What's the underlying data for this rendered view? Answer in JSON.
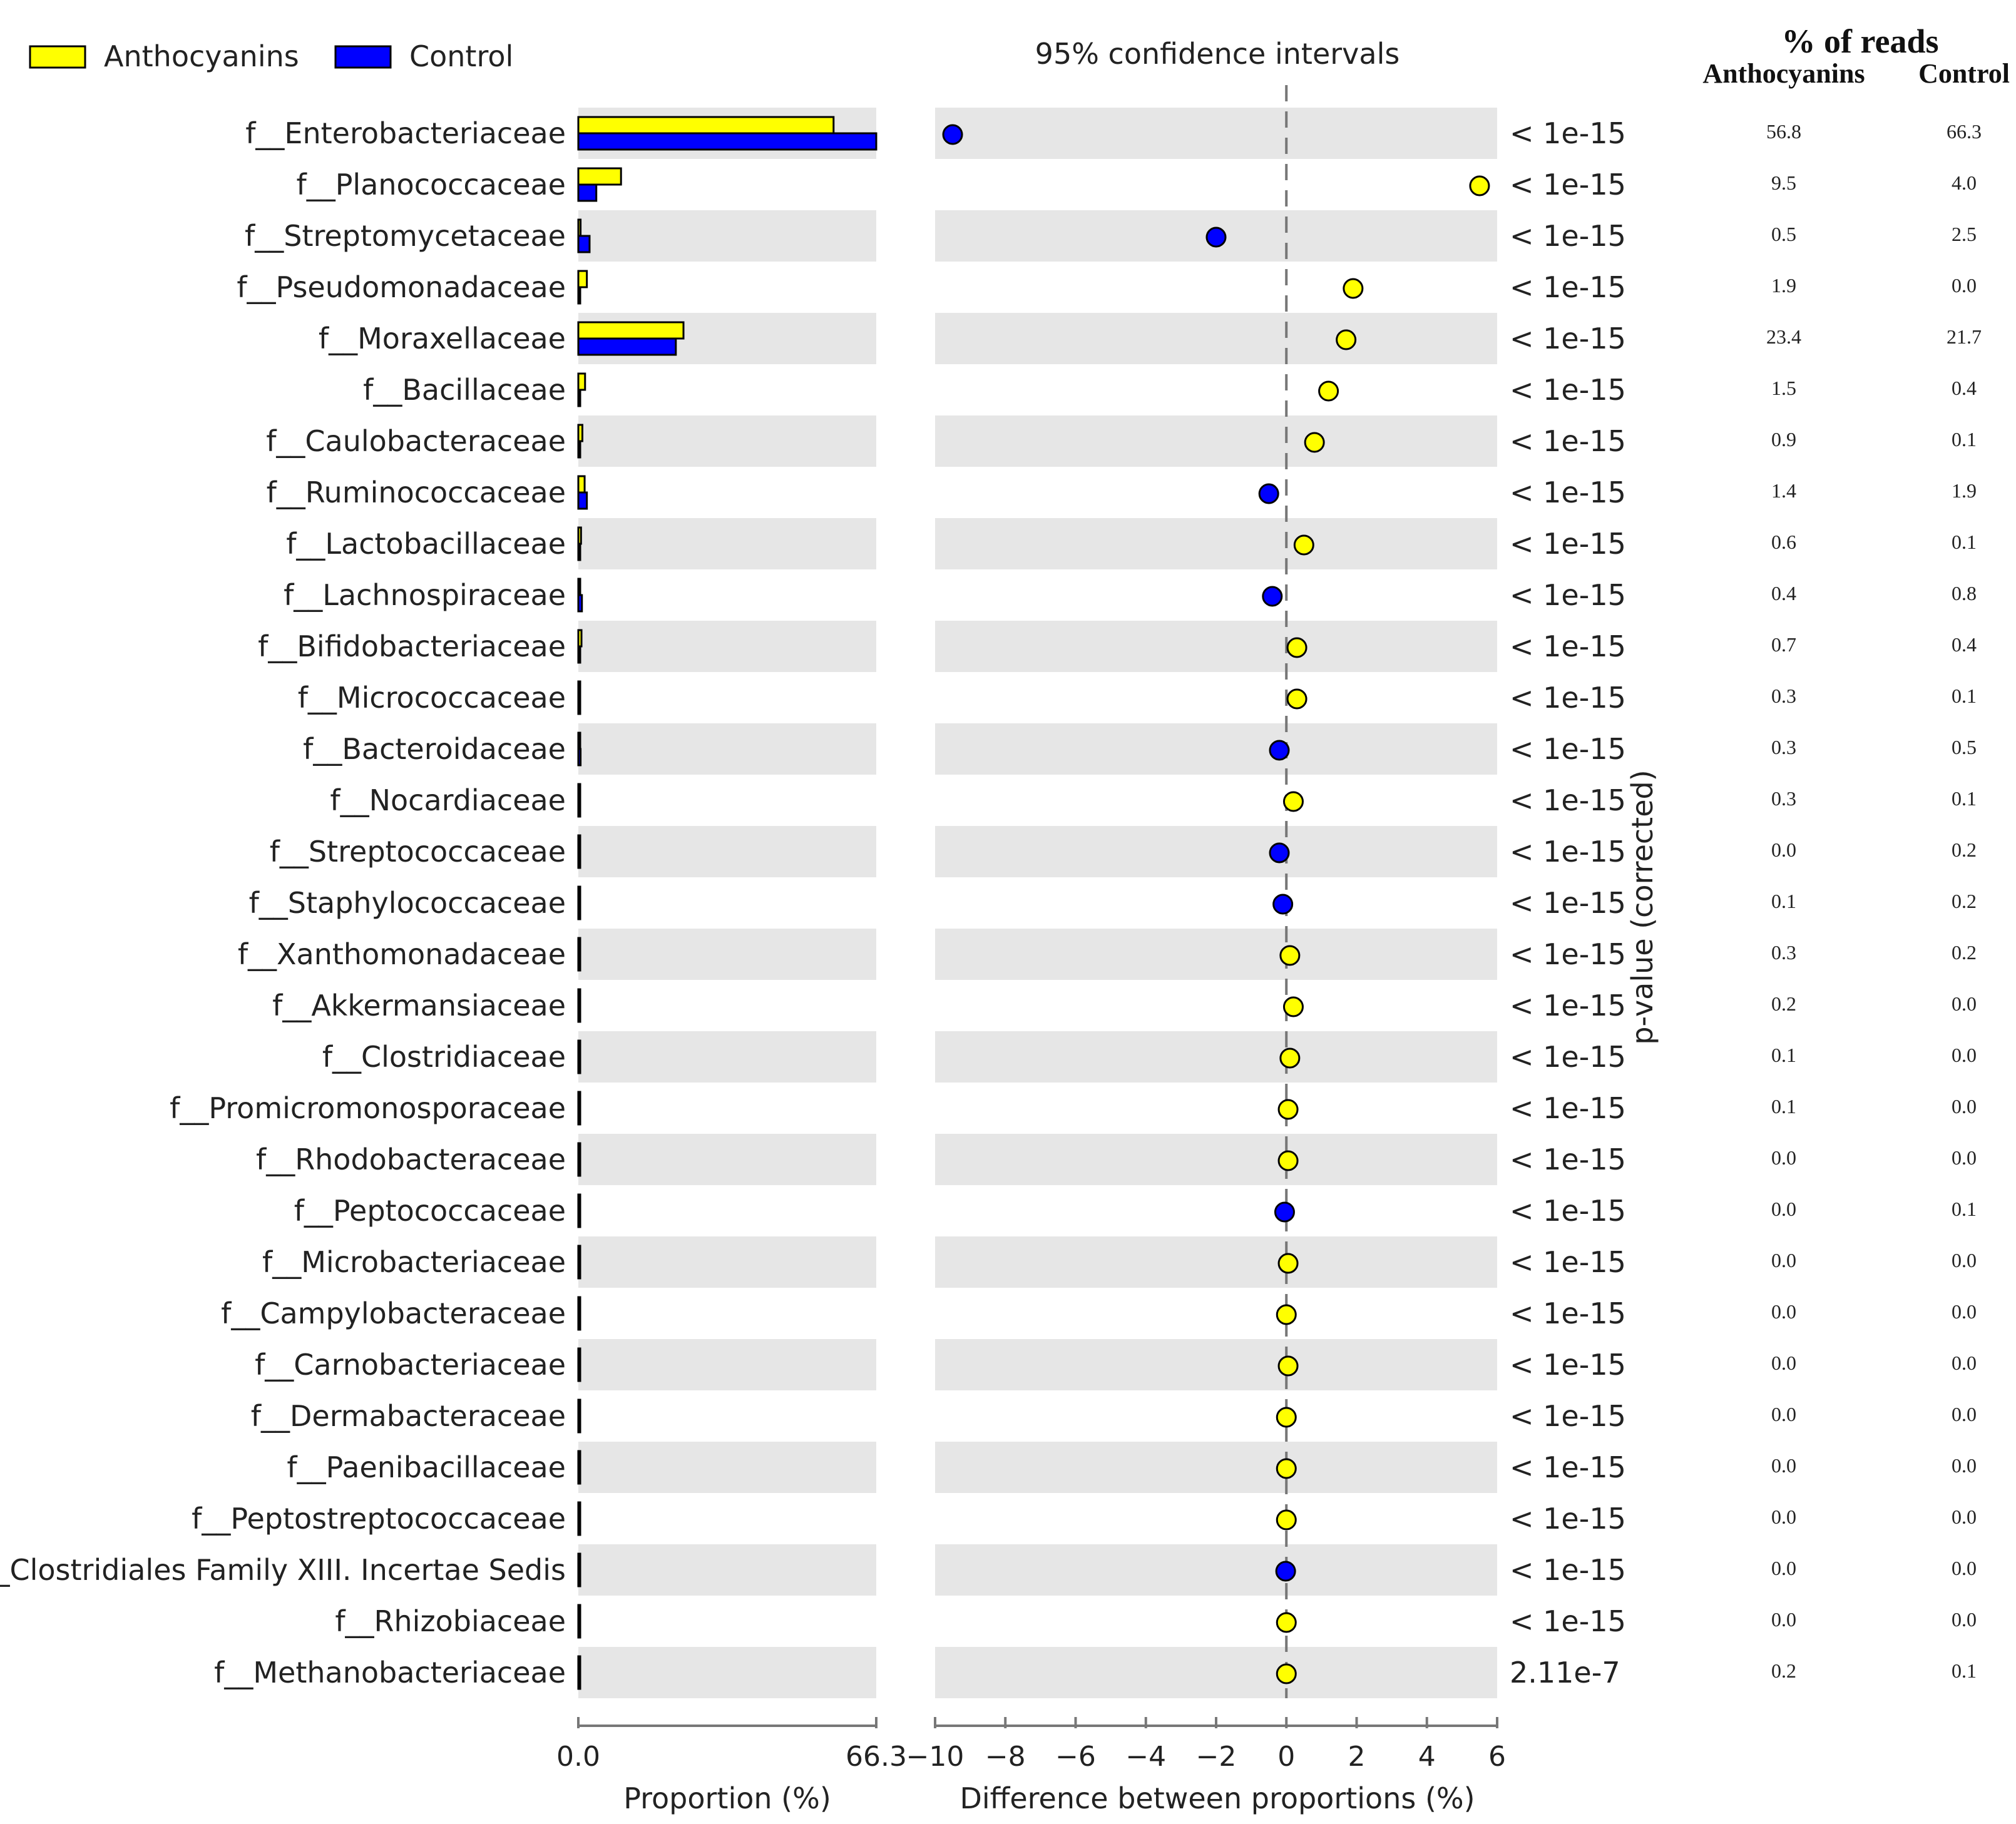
{
  "chart_data": {
    "type": "bar+scatter",
    "legend": [
      {
        "name": "Anthocyanins",
        "color": "#FFFF00"
      },
      {
        "name": "Control",
        "color": "#0000FF"
      }
    ],
    "ci_title": "95% confidence intervals",
    "reads_title": "% of reads",
    "reads_col1": "Anthocyanins",
    "reads_col2": "Control",
    "pvalue_label": "p-value (corrected)",
    "proportion": {
      "xlabel": "Proportion (%)",
      "xlim": [
        0,
        66.3
      ],
      "tick_labels": [
        "0.0",
        "66.3"
      ]
    },
    "difference": {
      "xlabel": "Difference between proportions (%)",
      "xlim": [
        -10,
        6
      ],
      "ticks": [
        -10,
        -8,
        -6,
        -4,
        -2,
        0,
        2,
        4,
        6
      ],
      "tick_labels": [
        "−10",
        "−8",
        "−6",
        "−4",
        "−2",
        "0",
        "2",
        "4",
        "6"
      ]
    },
    "categories": [
      "f__Enterobacteriaceae",
      "f__Planococcaceae",
      "f__Streptomycetaceae",
      "f__Pseudomonadaceae",
      "f__Moraxellaceae",
      "f__Bacillaceae",
      "f__Caulobacteraceae",
      "f__Ruminococcaceae",
      "f__Lactobacillaceae",
      "f__Lachnospiraceae",
      "f__Bifidobacteriaceae",
      "f__Micrococcaceae",
      "f__Bacteroidaceae",
      "f__Nocardiaceae",
      "f__Streptococcaceae",
      "f__Staphylococcaceae",
      "f__Xanthomonadaceae",
      "f__Akkermansiaceae",
      "f__Clostridiaceae",
      "f__Promicromonosporaceae",
      "f__Rhodobacteraceae",
      "f__Peptococcaceae",
      "f__Microbacteriaceae",
      "f__Campylobacteraceae",
      "f__Carnobacteriaceae",
      "f__Dermabacteraceae",
      "f__Paenibacillaceae",
      "f__Peptostreptococcaceae",
      "f__Clostridiales Family XIII. Incertae Sedis",
      "f__Rhizobiaceae",
      "f__Methanobacteriaceae"
    ],
    "series": [
      {
        "name": "Anthocyanins",
        "values": [
          56.8,
          9.5,
          0.5,
          1.9,
          23.4,
          1.5,
          0.9,
          1.4,
          0.6,
          0.4,
          0.7,
          0.3,
          0.3,
          0.3,
          0.0,
          0.1,
          0.3,
          0.2,
          0.1,
          0.1,
          0.0,
          0.0,
          0.0,
          0.0,
          0.0,
          0.0,
          0.0,
          0.0,
          0.0,
          0.0,
          0.2
        ]
      },
      {
        "name": "Control",
        "values": [
          66.3,
          4.0,
          2.5,
          0.0,
          21.7,
          0.4,
          0.1,
          1.9,
          0.1,
          0.8,
          0.4,
          0.1,
          0.5,
          0.1,
          0.2,
          0.2,
          0.2,
          0.0,
          0.0,
          0.0,
          0.0,
          0.1,
          0.0,
          0.0,
          0.0,
          0.0,
          0.0,
          0.0,
          0.0,
          0.0,
          0.1
        ]
      }
    ],
    "difference_values": [
      -9.5,
      5.5,
      -2.0,
      1.9,
      1.7,
      1.2,
      0.8,
      -0.5,
      0.5,
      -0.4,
      0.3,
      0.3,
      -0.2,
      0.2,
      -0.2,
      -0.1,
      0.1,
      0.2,
      0.1,
      0.05,
      0.05,
      -0.05,
      0.05,
      0.0,
      0.05,
      0.0,
      0.0,
      0.0,
      -0.02,
      0.0,
      0.0
    ],
    "difference_favors": [
      "Control",
      "Anthocyanins",
      "Control",
      "Anthocyanins",
      "Anthocyanins",
      "Anthocyanins",
      "Anthocyanins",
      "Control",
      "Anthocyanins",
      "Control",
      "Anthocyanins",
      "Anthocyanins",
      "Control",
      "Anthocyanins",
      "Control",
      "Control",
      "Anthocyanins",
      "Anthocyanins",
      "Anthocyanins",
      "Anthocyanins",
      "Anthocyanins",
      "Control",
      "Anthocyanins",
      "Anthocyanins",
      "Anthocyanins",
      "Anthocyanins",
      "Anthocyanins",
      "Anthocyanins",
      "Control",
      "Anthocyanins",
      "Anthocyanins"
    ],
    "pvalues": [
      "< 1e-15",
      "< 1e-15",
      "< 1e-15",
      "< 1e-15",
      "< 1e-15",
      "< 1e-15",
      "< 1e-15",
      "< 1e-15",
      "< 1e-15",
      "< 1e-15",
      "< 1e-15",
      "< 1e-15",
      "< 1e-15",
      "< 1e-15",
      "< 1e-15",
      "< 1e-15",
      "< 1e-15",
      "< 1e-15",
      "< 1e-15",
      "< 1e-15",
      "< 1e-15",
      "< 1e-15",
      "< 1e-15",
      "< 1e-15",
      "< 1e-15",
      "< 1e-15",
      "< 1e-15",
      "< 1e-15",
      "< 1e-15",
      "< 1e-15",
      "2.11e-7"
    ],
    "reads_anthocyanins": [
      "56.8",
      "9.5",
      "0.5",
      "1.9",
      "23.4",
      "1.5",
      "0.9",
      "1.4",
      "0.6",
      "0.4",
      "0.7",
      "0.3",
      "0.3",
      "0.3",
      "0.0",
      "0.1",
      "0.3",
      "0.2",
      "0.1",
      "0.1",
      "0.0",
      "0.0",
      "0.0",
      "0.0",
      "0.0",
      "0.0",
      "0.0",
      "0.0",
      "0.0",
      "0.0",
      "0.2"
    ],
    "reads_control": [
      "66.3",
      "4.0",
      "2.5",
      "0.0",
      "21.7",
      "0.4",
      "0.1",
      "1.9",
      "0.1",
      "0.8",
      "0.4",
      "0.1",
      "0.5",
      "0.1",
      "0.2",
      "0.2",
      "0.2",
      "0.0",
      "0.0",
      "0.0",
      "0.0",
      "0.1",
      "0.0",
      "0.0",
      "0.0",
      "0.0",
      "0.0",
      "0.0",
      "0.0",
      "0.0",
      "0.1"
    ]
  }
}
